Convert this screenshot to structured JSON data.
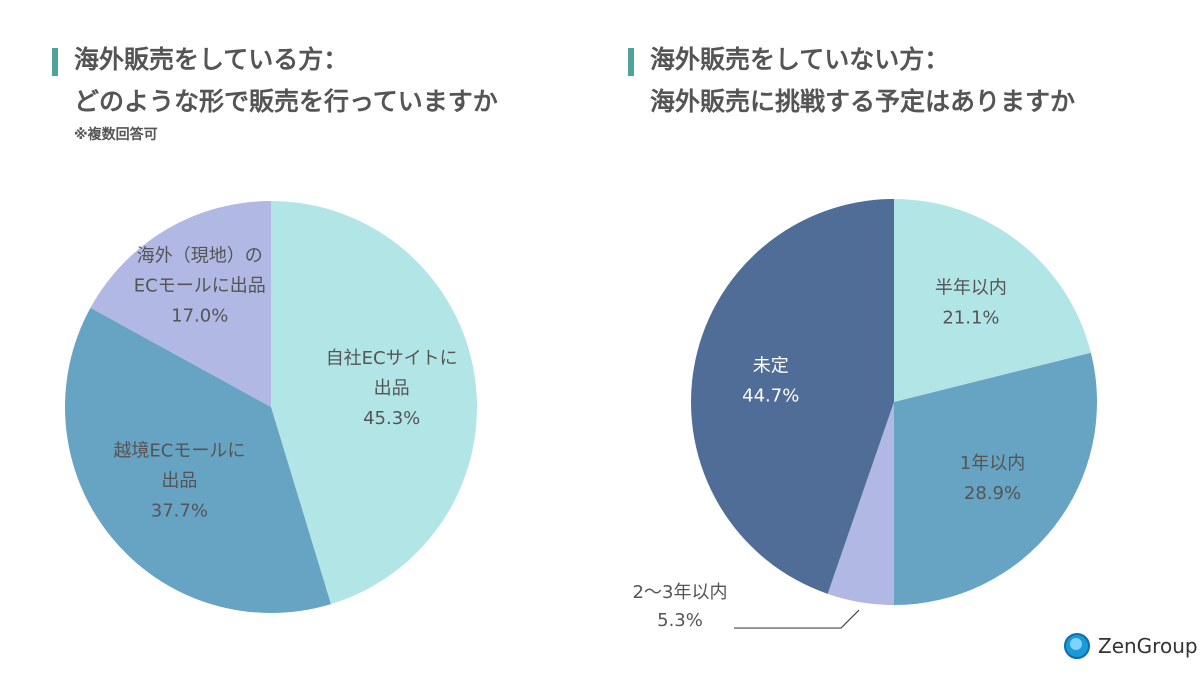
{
  "left_panel": {
    "title_line1": "海外販売をしている方：",
    "title_line2": "どのような形で販売を行っていますか",
    "note": "※複数回答可"
  },
  "right_panel": {
    "title_line1": "海外販売をしていない方：",
    "title_line2": "海外販売に挑戦する予定はありますか"
  },
  "colors": {
    "accent_bar": "#4fa39b",
    "light_cyan": "#b2e6e6",
    "mid_blue": "#67a3c2",
    "lavender": "#b0b8e3",
    "dark_blue": "#4f6d96"
  },
  "chart_data": [
    {
      "type": "pie",
      "title": "海外販売をしている方：どのような形で販売を行っていますか",
      "subtitle": "※複数回答可",
      "start": "top, clockwise",
      "slices": [
        {
          "label_lines": [
            "自社ECサイトに",
            "出品"
          ],
          "value": 45.3,
          "value_text": "45.3%",
          "color": "#b2e6e6"
        },
        {
          "label_lines": [
            "越境ECモールに",
            "出品"
          ],
          "value": 37.7,
          "value_text": "37.7%",
          "color": "#67a3c2"
        },
        {
          "label_lines": [
            "海外（現地）の",
            "ECモールに出品"
          ],
          "value": 17.0,
          "value_text": "17.0%",
          "color": "#b0b8e3"
        }
      ]
    },
    {
      "type": "pie",
      "title": "海外販売をしていない方：海外販売に挑戦する予定はありますか",
      "start": "top, clockwise",
      "slices": [
        {
          "label_lines": [
            "半年以内"
          ],
          "value": 21.1,
          "value_text": "21.1%",
          "color": "#b2e6e6",
          "label_color": "#555555"
        },
        {
          "label_lines": [
            "1年以内"
          ],
          "value": 28.9,
          "value_text": "28.9%",
          "color": "#67a3c2",
          "label_color": "#555555"
        },
        {
          "label_lines": [
            "2〜3年以内"
          ],
          "value": 5.3,
          "value_text": "5.3%",
          "color": "#b0b8e3",
          "label_color": "#555555",
          "outside": true
        },
        {
          "label_lines": [
            "未定"
          ],
          "value": 44.7,
          "value_text": "44.7%",
          "color": "#4f6d96",
          "label_color": "#ffffff"
        }
      ]
    }
  ],
  "brand": {
    "name": "ZenGroup"
  }
}
